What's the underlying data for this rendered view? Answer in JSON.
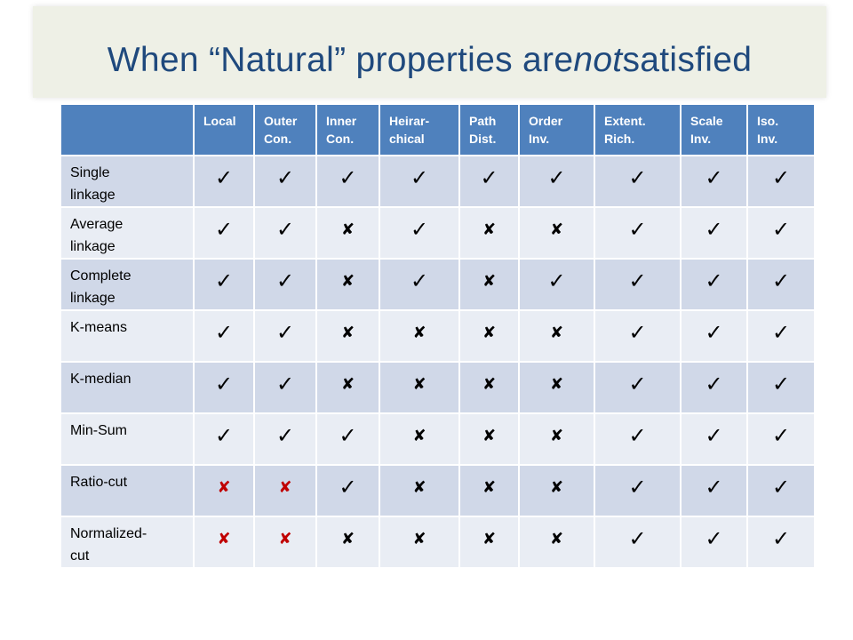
{
  "title": {
    "before": "When “Natural” properties are ",
    "emph": "not",
    "after": " satisfied"
  },
  "table": {
    "headers": [
      "",
      "Local",
      "Outer Con.",
      "Inner Con.",
      "Heirar-chical",
      "Path Dist.",
      "Order Inv.",
      "Extent. Rich.",
      "Scale Inv.",
      "Iso. Inv."
    ],
    "header_lines": [
      [
        ""
      ],
      [
        "Local"
      ],
      [
        "Outer",
        "Con."
      ],
      [
        "Inner",
        "Con."
      ],
      [
        "Heirar-",
        "chical"
      ],
      [
        "Path",
        "Dist."
      ],
      [
        "Order",
        "Inv."
      ],
      [
        "Extent.",
        "Rich."
      ],
      [
        "Scale",
        "Inv."
      ],
      [
        "Iso.",
        "Inv."
      ]
    ],
    "rows": [
      {
        "label": "Single linkage",
        "label_lines": [
          "Single",
          "linkage"
        ],
        "cells": [
          "check",
          "check",
          "check",
          "check",
          "check",
          "check",
          "check",
          "check",
          "check"
        ]
      },
      {
        "label": "Average linkage",
        "label_lines": [
          "Average",
          "linkage"
        ],
        "cells": [
          "check",
          "check",
          "cross",
          "check",
          "cross",
          "cross",
          "check",
          "check",
          "check"
        ]
      },
      {
        "label": "Complete linkage",
        "label_lines": [
          "Complete",
          "linkage"
        ],
        "cells": [
          "check",
          "check",
          "cross",
          "check",
          "cross",
          "check",
          "check",
          "check",
          "check"
        ]
      },
      {
        "label": "K-means",
        "label_lines": [
          "K-means"
        ],
        "cells": [
          "check",
          "check",
          "cross",
          "cross",
          "cross",
          "cross",
          "check",
          "check",
          "check"
        ]
      },
      {
        "label": "K-median",
        "label_lines": [
          "K-median"
        ],
        "cells": [
          "check",
          "check",
          "cross",
          "cross",
          "cross",
          "cross",
          "check",
          "check",
          "check"
        ]
      },
      {
        "label": "Min-Sum",
        "label_lines": [
          "Min-Sum"
        ],
        "cells": [
          "check",
          "check",
          "check",
          "cross",
          "cross",
          "cross",
          "check",
          "check",
          "check"
        ]
      },
      {
        "label": "Ratio-cut",
        "label_lines": [
          "Ratio-cut"
        ],
        "cells": [
          "cross-red",
          "cross-red",
          "check",
          "cross",
          "cross",
          "cross",
          "check",
          "check",
          "check"
        ]
      },
      {
        "label": "Normalized-cut",
        "label_lines": [
          "Normalized-",
          "cut"
        ],
        "cells": [
          "cross-red",
          "cross-red",
          "cross",
          "cross",
          "cross",
          "cross",
          "check",
          "check",
          "check"
        ]
      }
    ]
  },
  "glyphs": {
    "check": "✓",
    "cross": "✘"
  },
  "colors": {
    "header_bg": "#4f81bd",
    "row_dark": "#d0d8e8",
    "row_light": "#e9edf4",
    "title": "#1f497d",
    "cross_red": "#c00000"
  }
}
